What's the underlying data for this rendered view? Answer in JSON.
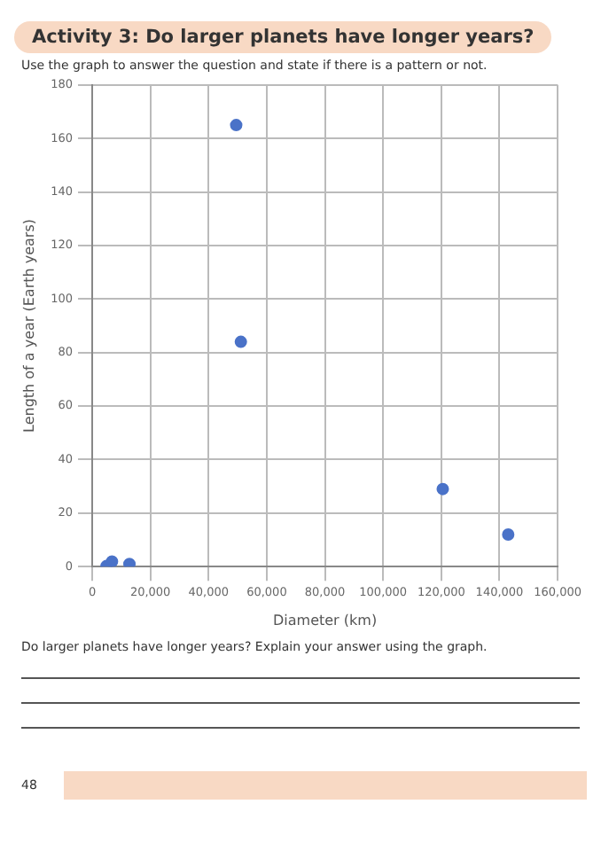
{
  "chart_data": {
    "type": "scatter",
    "title": "Activity 3: Do larger planets have longer years?",
    "subtitle": "Use the graph to answer the question and state if there is a pattern or not.",
    "xlabel": "Diameter (km)",
    "ylabel": "Length of a year (Earth years)",
    "annotations": [
      "Do larger planets have longer years? Explain your answer using the graph.",
      "48"
    ],
    "x": [
      4900,
      6800,
      12100,
      12800,
      143000,
      120500,
      51100,
      49500
    ],
    "values": [
      0.2,
      1.9,
      null,
      1,
      12,
      29,
      84,
      165
    ],
    "color": "#4a72c8",
    "marker": "circle",
    "grid": true,
    "xlim": [
      0,
      160000
    ],
    "xticks": [
      0,
      {
        "value": 20000,
        "label": "20,000"
      },
      {
        "value": 40000,
        "label": "40,000"
      },
      {
        "value": 60000,
        "label": "60,000"
      },
      {
        "value": 80000,
        "label": "80,000"
      },
      {
        "value": 100000,
        "label": "100,000"
      },
      {
        "value": 120000,
        "label": "120,000"
      },
      {
        "value": 140000,
        "label": "140,000"
      },
      {
        "value": 160000,
        "label": "160,000"
      }
    ],
    "ylim": [
      0,
      180
    ],
    "yticks": [
      0,
      20,
      40,
      60,
      80,
      100,
      120,
      140,
      160,
      180
    ]
  }
}
